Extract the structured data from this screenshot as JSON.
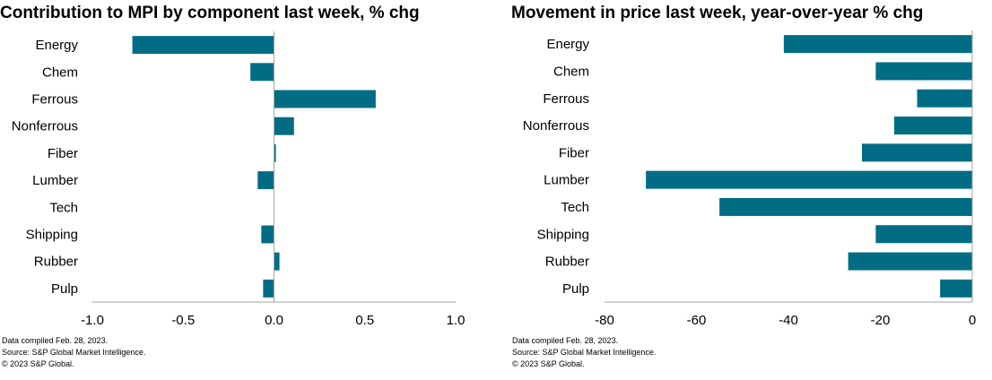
{
  "colors": {
    "bar": "#006d84",
    "axis": "#a6a6a6"
  },
  "chart_data": [
    {
      "type": "bar",
      "orientation": "horizontal",
      "title": "Contribution to MPI by component last week, % chg",
      "categories": [
        "Energy",
        "Chem",
        "Ferrous",
        "Nonferrous",
        "Fiber",
        "Lumber",
        "Tech",
        "Shipping",
        "Rubber",
        "Pulp"
      ],
      "values": [
        -0.78,
        -0.13,
        0.56,
        0.11,
        0.01,
        -0.09,
        0.0,
        -0.07,
        0.03,
        -0.06
      ],
      "xlim": [
        -1.0,
        1.0
      ],
      "ticks": [
        -1.0,
        -0.5,
        0.0,
        0.5,
        1.0
      ],
      "tick_labels": [
        "-1.0",
        "-0.5",
        "0.0",
        "0.5",
        "1.0"
      ],
      "grid": false,
      "footnotes": [
        "Data compiled Feb. 28, 2023.",
        "Source: S&P Global Market Intelligence.",
        "© 2023 S&P Global."
      ]
    },
    {
      "type": "bar",
      "orientation": "horizontal",
      "title": "Movement in price last week, year-over-year % chg",
      "categories": [
        "Energy",
        "Chem",
        "Ferrous",
        "Nonferrous",
        "Fiber",
        "Lumber",
        "Tech",
        "Shipping",
        "Rubber",
        "Pulp"
      ],
      "values": [
        -41,
        -21,
        -12,
        -17,
        -24,
        -71,
        -55,
        -21,
        -27,
        -7
      ],
      "xlim": [
        -80,
        0
      ],
      "ticks": [
        -80,
        -60,
        -40,
        -20,
        0
      ],
      "tick_labels": [
        "-80",
        "-60",
        "-40",
        "-20",
        "0"
      ],
      "grid": false,
      "footnotes": [
        "Data compiled Feb. 28, 2023.",
        "Source: S&P Global Market Intelligence.",
        "© 2023 S&P Global."
      ]
    }
  ]
}
